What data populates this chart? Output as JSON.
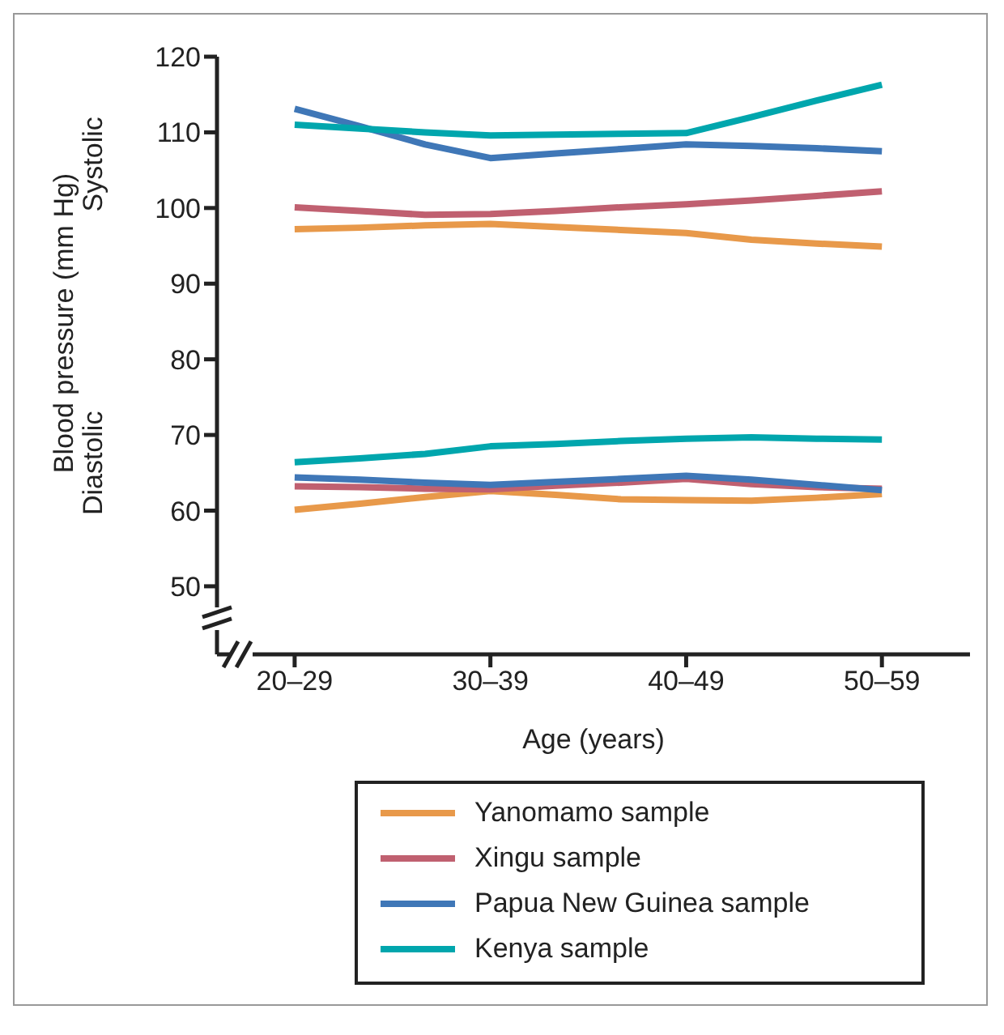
{
  "chart_data": {
    "type": "line",
    "xlabel": "Age (years)",
    "ylabel": "Blood pressure (mm Hg)",
    "annotations": [
      "Systolic",
      "Diastolic"
    ],
    "categories": [
      "20–29",
      null,
      null,
      "30–39",
      null,
      null,
      "40–49",
      null,
      null,
      "50–59"
    ],
    "ylim": [
      41,
      120
    ],
    "yticks": [
      50,
      60,
      70,
      80,
      90,
      100,
      110,
      120
    ],
    "grid": false,
    "legend": "bottom",
    "marker": "none",
    "line_style": "solid",
    "series": [
      {
        "name": "Yanomamo sample",
        "color": "#e8994a",
        "values": [
          97.2,
          97.4,
          97.7,
          97.9,
          97.5,
          97.1,
          96.7,
          95.8,
          95.3,
          94.9
        ]
      },
      {
        "name": "Xingu sample",
        "color": "#c06070",
        "values": [
          100.1,
          99.6,
          99.1,
          99.2,
          99.6,
          100.1,
          100.5,
          101.0,
          101.6,
          102.2
        ]
      },
      {
        "name": "Papua New Guinea sample",
        "color": "#3f77b7",
        "values": [
          113.1,
          110.8,
          108.4,
          106.6,
          107.2,
          107.8,
          108.4,
          108.2,
          107.9,
          107.5
        ]
      },
      {
        "name": "Kenya sample",
        "color": "#00a6ad",
        "values": [
          111.0,
          110.5,
          110.0,
          109.6,
          109.7,
          109.8,
          109.9,
          112.0,
          114.2,
          116.3
        ]
      },
      {
        "color": "#e8994a",
        "values": [
          60.1,
          60.9,
          61.8,
          62.6,
          62.1,
          61.5,
          61.4,
          61.3,
          61.7,
          62.2
        ]
      },
      {
        "color": "#c06070",
        "values": [
          63.2,
          63.1,
          62.9,
          62.8,
          63.3,
          63.7,
          64.2,
          63.5,
          63.1,
          62.9
        ]
      },
      {
        "color": "#3f77b7",
        "values": [
          64.4,
          64.1,
          63.7,
          63.4,
          63.8,
          64.2,
          64.6,
          64.1,
          63.4,
          62.7
        ]
      },
      {
        "color": "#00a6ad",
        "values": [
          66.4,
          66.9,
          67.5,
          68.5,
          68.8,
          69.2,
          69.5,
          69.7,
          69.5,
          69.4
        ]
      }
    ]
  }
}
